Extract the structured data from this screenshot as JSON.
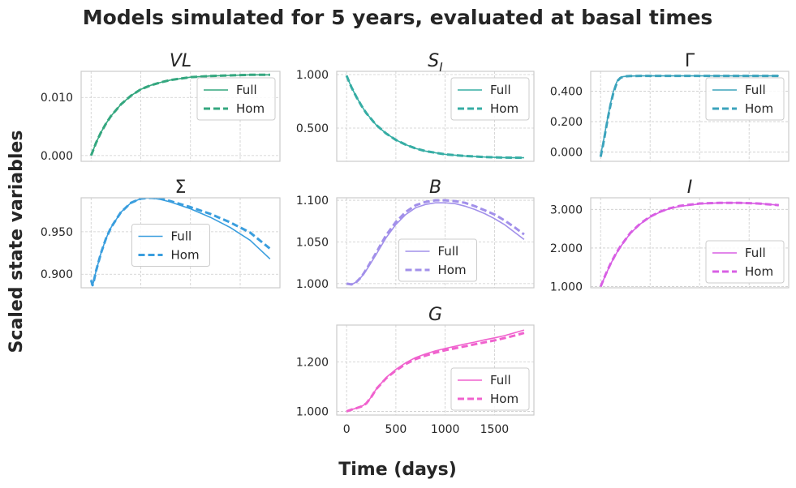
{
  "figure": {
    "suptitle": "Models simulated for 5 years, evaluated at basal times",
    "supylabel": "Scaled state variables",
    "supxlabel": "Time (days)"
  },
  "chart_data": [
    {
      "type": "line",
      "title": "VL",
      "title_italic": true,
      "color": "#34a77f",
      "xlim": [
        -100,
        1900
      ],
      "ylim": [
        -0.001,
        0.0145
      ],
      "yticks": [
        0.0,
        0.01
      ],
      "ytick_labels": [
        "0.000",
        "0.010"
      ],
      "xticks": [
        0,
        500,
        1000,
        1500
      ],
      "xtick_labels": [],
      "legend": {
        "location": "upper right",
        "entries": [
          "Full",
          "Hom"
        ]
      },
      "x": [
        0,
        50,
        100,
        150,
        200,
        300,
        400,
        500,
        600,
        700,
        800,
        1000,
        1200,
        1400,
        1600,
        1800
      ],
      "series": [
        {
          "name": "Full",
          "style": "solid",
          "values": [
            0.0,
            0.0022,
            0.004,
            0.0055,
            0.0068,
            0.0088,
            0.0103,
            0.0114,
            0.0121,
            0.0126,
            0.013,
            0.0135,
            0.0137,
            0.0138,
            0.0139,
            0.0139
          ]
        },
        {
          "name": "Hom",
          "style": "dashed",
          "values": [
            0.0,
            0.0022,
            0.004,
            0.0055,
            0.0068,
            0.0088,
            0.0103,
            0.0114,
            0.0121,
            0.0126,
            0.013,
            0.0135,
            0.0137,
            0.0138,
            0.0139,
            0.0139
          ]
        }
      ]
    },
    {
      "type": "line",
      "title": "S",
      "title_sub": "I",
      "title_italic": true,
      "color": "#36ada4",
      "xlim": [
        -100,
        1900
      ],
      "ylim": [
        0.19,
        1.03
      ],
      "yticks": [
        0.5,
        1.0
      ],
      "ytick_labels": [
        "0.500",
        "1.000"
      ],
      "xticks": [
        0,
        500,
        1000,
        1500
      ],
      "xtick_labels": [],
      "legend": {
        "location": "upper right",
        "entries": [
          "Full",
          "Hom"
        ]
      },
      "x": [
        0,
        50,
        100,
        150,
        200,
        300,
        400,
        500,
        600,
        700,
        800,
        1000,
        1200,
        1400,
        1600,
        1800
      ],
      "series": [
        {
          "name": "Full",
          "style": "solid",
          "values": [
            0.99,
            0.88,
            0.79,
            0.71,
            0.64,
            0.53,
            0.45,
            0.39,
            0.345,
            0.31,
            0.285,
            0.255,
            0.24,
            0.23,
            0.225,
            0.223
          ]
        },
        {
          "name": "Hom",
          "style": "dashed",
          "values": [
            0.99,
            0.88,
            0.79,
            0.71,
            0.64,
            0.53,
            0.45,
            0.39,
            0.345,
            0.31,
            0.285,
            0.255,
            0.24,
            0.23,
            0.225,
            0.223
          ]
        }
      ]
    },
    {
      "type": "line",
      "title": "Γ",
      "title_italic": false,
      "color": "#3ba3bc",
      "xlim": [
        -100,
        1900
      ],
      "ylim": [
        -0.06,
        0.53
      ],
      "yticks": [
        0.0,
        0.2,
        0.4
      ],
      "ytick_labels": [
        "0.000",
        "0.200",
        "0.400"
      ],
      "xticks": [
        0,
        500,
        1000,
        1500
      ],
      "xtick_labels": [],
      "legend": {
        "location": "upper right",
        "entries": [
          "Full",
          "Hom"
        ]
      },
      "x": [
        0,
        25,
        50,
        75,
        100,
        125,
        150,
        175,
        200,
        225,
        250,
        300,
        400,
        600,
        1000,
        1400,
        1800
      ],
      "series": [
        {
          "name": "Full",
          "style": "solid",
          "values": [
            -0.02,
            0.06,
            0.15,
            0.24,
            0.32,
            0.39,
            0.44,
            0.475,
            0.49,
            0.495,
            0.497,
            0.499,
            0.5,
            0.5,
            0.5,
            0.5,
            0.5
          ]
        },
        {
          "name": "Hom",
          "style": "dashed",
          "values": [
            -0.03,
            0.05,
            0.14,
            0.23,
            0.31,
            0.38,
            0.43,
            0.47,
            0.487,
            0.494,
            0.497,
            0.499,
            0.5,
            0.5,
            0.5,
            0.5,
            0.5
          ]
        }
      ]
    },
    {
      "type": "line",
      "title": "Σ",
      "title_italic": false,
      "color": "#3a9ede",
      "xlim": [
        -100,
        1900
      ],
      "ylim": [
        0.884,
        0.99
      ],
      "yticks": [
        0.9,
        0.95
      ],
      "ytick_labels": [
        "0.900",
        "0.950"
      ],
      "xticks": [
        0,
        500,
        1000,
        1500
      ],
      "xtick_labels": [],
      "legend": {
        "location": "center",
        "entries": [
          "Full",
          "Hom"
        ]
      },
      "x": [
        0,
        15,
        30,
        50,
        100,
        150,
        200,
        300,
        400,
        500,
        600,
        700,
        800,
        1000,
        1200,
        1400,
        1600,
        1800
      ],
      "series": [
        {
          "name": "Full",
          "style": "solid",
          "values": [
            0.893,
            0.887,
            0.893,
            0.904,
            0.925,
            0.942,
            0.955,
            0.973,
            0.984,
            0.989,
            0.99,
            0.988,
            0.985,
            0.977,
            0.967,
            0.955,
            0.94,
            0.918
          ]
        },
        {
          "name": "Hom",
          "style": "dashed",
          "values": [
            0.893,
            0.887,
            0.893,
            0.904,
            0.925,
            0.942,
            0.955,
            0.973,
            0.984,
            0.989,
            0.99,
            0.989,
            0.986,
            0.979,
            0.971,
            0.961,
            0.949,
            0.93
          ]
        }
      ]
    },
    {
      "type": "line",
      "title": "B",
      "title_italic": true,
      "color": "#a290ea",
      "xlim": [
        -100,
        1900
      ],
      "ylim": [
        0.995,
        1.103
      ],
      "yticks": [
        1.0,
        1.05,
        1.1
      ],
      "ytick_labels": [
        "1.000",
        "1.050",
        "1.100"
      ],
      "xticks": [
        0,
        500,
        1000,
        1500
      ],
      "xtick_labels": [],
      "legend": {
        "location": "lower center",
        "entries": [
          "Full",
          "Hom"
        ]
      },
      "x": [
        0,
        50,
        100,
        150,
        200,
        300,
        400,
        500,
        600,
        700,
        800,
        900,
        1000,
        1100,
        1200,
        1300,
        1400,
        1500,
        1600,
        1700,
        1800
      ],
      "series": [
        {
          "name": "Full",
          "style": "solid",
          "values": [
            1.0,
            0.999,
            1.002,
            1.008,
            1.016,
            1.035,
            1.055,
            1.071,
            1.083,
            1.091,
            1.095,
            1.097,
            1.097,
            1.096,
            1.093,
            1.089,
            1.084,
            1.078,
            1.071,
            1.062,
            1.053
          ]
        },
        {
          "name": "Hom",
          "style": "dashed",
          "values": [
            1.0,
            0.999,
            1.002,
            1.008,
            1.017,
            1.037,
            1.058,
            1.074,
            1.086,
            1.094,
            1.098,
            1.1,
            1.1,
            1.099,
            1.097,
            1.093,
            1.088,
            1.083,
            1.076,
            1.068,
            1.059
          ]
        }
      ]
    },
    {
      "type": "line",
      "title": "I",
      "title_italic": true,
      "color": "#d85fe4",
      "xlim": [
        -100,
        1900
      ],
      "ylim": [
        0.97,
        3.3
      ],
      "yticks": [
        1.0,
        2.0,
        3.0
      ],
      "ytick_labels": [
        "1.000",
        "2.000",
        "3.000"
      ],
      "xticks": [
        0,
        500,
        1000,
        1500
      ],
      "xtick_labels": [],
      "legend": {
        "location": "lower right",
        "entries": [
          "Full",
          "Hom"
        ]
      },
      "x": [
        0,
        50,
        100,
        150,
        200,
        300,
        400,
        500,
        600,
        700,
        800,
        1000,
        1200,
        1400,
        1600,
        1800
      ],
      "series": [
        {
          "name": "Full",
          "style": "solid",
          "values": [
            1.0,
            1.3,
            1.58,
            1.82,
            2.03,
            2.38,
            2.62,
            2.8,
            2.93,
            3.02,
            3.08,
            3.14,
            3.17,
            3.17,
            3.15,
            3.11
          ]
        },
        {
          "name": "Hom",
          "style": "dashed",
          "values": [
            1.0,
            1.31,
            1.59,
            1.83,
            2.04,
            2.39,
            2.63,
            2.81,
            2.94,
            3.03,
            3.09,
            3.15,
            3.17,
            3.17,
            3.15,
            3.11
          ]
        }
      ]
    },
    {
      "type": "line",
      "title": "G",
      "title_italic": true,
      "color": "#f062ce",
      "xlim": [
        -100,
        1900
      ],
      "ylim": [
        0.985,
        1.35
      ],
      "yticks": [
        1.0,
        1.2
      ],
      "ytick_labels": [
        "1.000",
        "1.200"
      ],
      "xticks": [
        0,
        500,
        1000,
        1500
      ],
      "xtick_labels": [
        "0",
        "500",
        "1000",
        "1500"
      ],
      "legend": {
        "location": "lower right",
        "entries": [
          "Full",
          "Hom"
        ]
      },
      "x": [
        0,
        50,
        100,
        150,
        200,
        250,
        300,
        400,
        500,
        600,
        700,
        800,
        900,
        1000,
        1100,
        1200,
        1300,
        1400,
        1500,
        1600,
        1700,
        1800
      ],
      "series": [
        {
          "name": "Full",
          "style": "solid",
          "values": [
            1.0,
            1.007,
            1.013,
            1.02,
            1.032,
            1.058,
            1.09,
            1.137,
            1.17,
            1.197,
            1.218,
            1.233,
            1.245,
            1.255,
            1.264,
            1.273,
            1.281,
            1.29,
            1.298,
            1.307,
            1.318,
            1.33
          ]
        },
        {
          "name": "Hom",
          "style": "dashed",
          "values": [
            1.0,
            1.007,
            1.013,
            1.02,
            1.032,
            1.058,
            1.09,
            1.134,
            1.166,
            1.192,
            1.212,
            1.226,
            1.238,
            1.248,
            1.256,
            1.264,
            1.272,
            1.28,
            1.288,
            1.297,
            1.307,
            1.318
          ]
        }
      ]
    }
  ]
}
